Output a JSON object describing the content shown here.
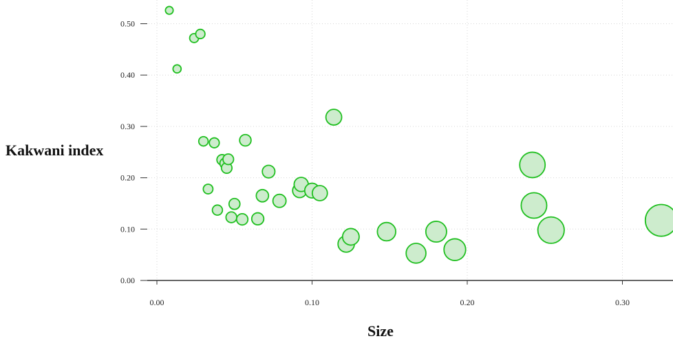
{
  "chart_data": {
    "type": "scatter",
    "title": "",
    "xlabel": "Size",
    "ylabel": "Kakwani index",
    "xlim": [
      -0.005,
      0.33
    ],
    "ylim": [
      0.0,
      0.53
    ],
    "x_ticks": [
      {
        "value": 0.0,
        "label": "0.00"
      },
      {
        "value": 0.1,
        "label": "0.10"
      },
      {
        "value": 0.2,
        "label": "0.20"
      },
      {
        "value": 0.3,
        "label": "0.30"
      }
    ],
    "y_ticks": [
      {
        "value": 0.0,
        "label": "0.00"
      },
      {
        "value": 0.1,
        "label": "0.10"
      },
      {
        "value": 0.2,
        "label": "0.20"
      },
      {
        "value": 0.3,
        "label": "0.30"
      },
      {
        "value": 0.4,
        "label": "0.40"
      },
      {
        "value": 0.5,
        "label": "0.50"
      }
    ],
    "grid": true,
    "legend": "none",
    "colors": {
      "marker_fill": "#cdeccd",
      "marker_stroke": "#1fbf1f",
      "grid": "#d6d6d6",
      "axis": "#333333"
    },
    "points": [
      {
        "x": 0.008,
        "y": 0.526
      },
      {
        "x": 0.013,
        "y": 0.412
      },
      {
        "x": 0.024,
        "y": 0.472
      },
      {
        "x": 0.028,
        "y": 0.48
      },
      {
        "x": 0.03,
        "y": 0.271
      },
      {
        "x": 0.033,
        "y": 0.178
      },
      {
        "x": 0.037,
        "y": 0.268
      },
      {
        "x": 0.039,
        "y": 0.137
      },
      {
        "x": 0.042,
        "y": 0.235
      },
      {
        "x": 0.044,
        "y": 0.228
      },
      {
        "x": 0.045,
        "y": 0.219
      },
      {
        "x": 0.046,
        "y": 0.236
      },
      {
        "x": 0.048,
        "y": 0.123
      },
      {
        "x": 0.05,
        "y": 0.149
      },
      {
        "x": 0.055,
        "y": 0.119
      },
      {
        "x": 0.057,
        "y": 0.273
      },
      {
        "x": 0.065,
        "y": 0.12
      },
      {
        "x": 0.068,
        "y": 0.165
      },
      {
        "x": 0.072,
        "y": 0.212
      },
      {
        "x": 0.079,
        "y": 0.155
      },
      {
        "x": 0.092,
        "y": 0.175
      },
      {
        "x": 0.093,
        "y": 0.187
      },
      {
        "x": 0.1,
        "y": 0.175
      },
      {
        "x": 0.105,
        "y": 0.17
      },
      {
        "x": 0.114,
        "y": 0.318
      },
      {
        "x": 0.122,
        "y": 0.071
      },
      {
        "x": 0.125,
        "y": 0.085
      },
      {
        "x": 0.148,
        "y": 0.095
      },
      {
        "x": 0.167,
        "y": 0.053
      },
      {
        "x": 0.18,
        "y": 0.095
      },
      {
        "x": 0.192,
        "y": 0.06
      },
      {
        "x": 0.242,
        "y": 0.225
      },
      {
        "x": 0.243,
        "y": 0.146
      },
      {
        "x": 0.254,
        "y": 0.098
      },
      {
        "x": 0.325,
        "y": 0.117
      }
    ]
  }
}
